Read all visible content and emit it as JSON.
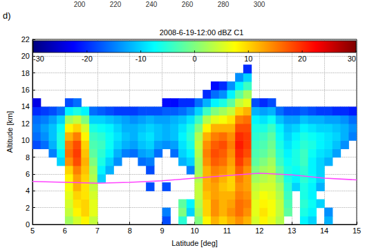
{
  "chart_data": {
    "type": "heatmap",
    "title": "2008-6-19-12:00 dBZ C1",
    "panel_label": "d)",
    "header_ticks": [
      "200",
      "220",
      "240",
      "260",
      "280",
      "300"
    ],
    "x_label": "Latitude [deg]",
    "y_label": "Altitude [km]",
    "xlim": [
      5,
      15
    ],
    "xticks": [
      5,
      6,
      7,
      8,
      9,
      10,
      11,
      12,
      13,
      14,
      15
    ],
    "ylim": [
      0,
      22
    ],
    "yticks": [
      0,
      2,
      4,
      6,
      8,
      10,
      12,
      14,
      16,
      18,
      20,
      22
    ],
    "grid": true,
    "x_edges": [
      5,
      5.25,
      5.5,
      5.75,
      6,
      6.25,
      6.5,
      6.75,
      7,
      7.25,
      7.5,
      7.75,
      8,
      8.25,
      8.5,
      8.75,
      9,
      9.25,
      9.5,
      9.75,
      10,
      10.25,
      10.5,
      10.75,
      11,
      11.25,
      11.5,
      11.75,
      12,
      12.25,
      12.5,
      12.75,
      13,
      13.25,
      13.5,
      13.75,
      14,
      14.25,
      14.5,
      14.75,
      15
    ],
    "y_edges": [
      0,
      1,
      2,
      3,
      4,
      5,
      6,
      7,
      8,
      9,
      10,
      11,
      12,
      13,
      14,
      15,
      16,
      17,
      18,
      19
    ],
    "cells": [
      [
        null,
        null,
        null,
        null,
        2,
        5,
        8,
        4,
        null,
        null,
        null,
        null,
        null,
        null,
        null,
        null,
        -18,
        null,
        -5,
        null,
        0,
        8,
        12,
        10,
        12,
        14,
        12,
        5,
        8,
        6,
        3,
        null,
        null,
        -8,
        -10,
        null,
        -12,
        null,
        null,
        null
      ],
      [
        null,
        null,
        null,
        null,
        4,
        8,
        10,
        6,
        null,
        null,
        null,
        null,
        null,
        null,
        null,
        null,
        -15,
        null,
        0,
        -10,
        2,
        10,
        14,
        12,
        14,
        16,
        14,
        6,
        9,
        7,
        4,
        -2,
        null,
        -6,
        -8,
        null,
        -14,
        null,
        null,
        null
      ],
      [
        null,
        null,
        null,
        null,
        5,
        9,
        10,
        6,
        null,
        null,
        null,
        null,
        null,
        null,
        null,
        null,
        null,
        null,
        -2,
        -8,
        3,
        10,
        14,
        12,
        13,
        16,
        15,
        6,
        8,
        7,
        4,
        -3,
        null,
        -5,
        -7,
        -10,
        null,
        null,
        null,
        null
      ],
      [
        null,
        null,
        null,
        null,
        6,
        10,
        9,
        5,
        null,
        null,
        null,
        null,
        null,
        null,
        null,
        null,
        null,
        null,
        null,
        null,
        4,
        11,
        13,
        12,
        12,
        15,
        14,
        5,
        7,
        6,
        3,
        -4,
        null,
        -6,
        -8,
        null,
        null,
        null,
        null,
        null
      ],
      [
        null,
        null,
        null,
        null,
        7,
        12,
        9,
        4,
        null,
        null,
        null,
        null,
        null,
        null,
        -18,
        null,
        -18,
        null,
        null,
        null,
        4,
        12,
        13,
        11,
        10,
        14,
        13,
        4,
        5,
        5,
        2,
        -5,
        -10,
        -6,
        -8,
        -12,
        null,
        null,
        null,
        null
      ],
      [
        null,
        null,
        null,
        null,
        8,
        13,
        10,
        3,
        -10,
        null,
        null,
        null,
        null,
        null,
        null,
        null,
        null,
        null,
        null,
        null,
        3,
        12,
        14,
        12,
        10,
        15,
        13,
        2,
        3,
        4,
        0,
        -6,
        -8,
        -5,
        -7,
        -10,
        null,
        null,
        null,
        null
      ],
      [
        null,
        null,
        null,
        null,
        10,
        15,
        11,
        2,
        -8,
        -12,
        null,
        null,
        null,
        null,
        -18,
        null,
        null,
        null,
        null,
        -15,
        2,
        12,
        15,
        14,
        12,
        17,
        14,
        0,
        2,
        3,
        -2,
        -6,
        -7,
        -5,
        -8,
        -10,
        null,
        null,
        null,
        null
      ],
      [
        null,
        null,
        null,
        -10,
        14,
        18,
        12,
        0,
        -6,
        -10,
        -14,
        null,
        null,
        -16,
        -15,
        null,
        null,
        null,
        -12,
        -10,
        2,
        14,
        17,
        16,
        13,
        19,
        16,
        -2,
        0,
        2,
        -4,
        -7,
        -6,
        -4,
        -8,
        -10,
        -12,
        null,
        null,
        null
      ],
      [
        null,
        null,
        -15,
        -8,
        16,
        19,
        11,
        -2,
        -5,
        -8,
        -12,
        -15,
        -16,
        -13,
        -12,
        -16,
        null,
        -16,
        -10,
        -8,
        3,
        15,
        18,
        17,
        14,
        20,
        18,
        -3,
        -2,
        0,
        -5,
        -8,
        -6,
        -4,
        -7,
        -9,
        -10,
        -13,
        null,
        null
      ],
      [
        -18,
        -16,
        -12,
        -6,
        15,
        18,
        10,
        -3,
        -4,
        -7,
        -10,
        -12,
        -13,
        -11,
        -10,
        -13,
        -14,
        -13,
        -9,
        -6,
        4,
        14,
        17,
        18,
        15,
        21,
        19,
        -4,
        -3,
        -1,
        -6,
        -9,
        -7,
        -5,
        -6,
        -8,
        -9,
        -11,
        -14,
        null
      ],
      [
        -16,
        -14,
        -11,
        -6,
        12,
        15,
        8,
        -4,
        -5,
        -7,
        -9,
        -11,
        -12,
        -10,
        -9,
        -11,
        -12,
        -11,
        -8,
        -5,
        3,
        12,
        15,
        16,
        14,
        20,
        19,
        -5,
        -4,
        -2,
        -7,
        -10,
        -8,
        -6,
        -7,
        -8,
        -9,
        -10,
        -12,
        -15
      ],
      [
        -15,
        -13,
        -11,
        -7,
        8,
        10,
        5,
        -6,
        -7,
        -8,
        -10,
        -12,
        -12,
        -11,
        -10,
        -11,
        -12,
        -11,
        -9,
        -6,
        0,
        8,
        12,
        12,
        12,
        18,
        18,
        -6,
        -6,
        -4,
        -8,
        -11,
        -10,
        -8,
        -9,
        -10,
        -10,
        -11,
        -12,
        -14
      ],
      [
        -16,
        -15,
        -13,
        -10,
        2,
        4,
        0,
        -10,
        -10,
        -11,
        -12,
        -13,
        -14,
        -13,
        -12,
        -13,
        -13,
        -12,
        -11,
        -9,
        -4,
        3,
        6,
        7,
        9,
        15,
        16,
        -8,
        -9,
        -7,
        -11,
        -13,
        -13,
        -11,
        -12,
        -12,
        -13,
        -13,
        -14,
        -16
      ],
      [
        -20,
        -19,
        -18,
        -16,
        -8,
        -6,
        -8,
        -16,
        -17,
        -18,
        -19,
        -19,
        -19,
        -18,
        -18,
        -18,
        -17,
        -17,
        -16,
        -14,
        -10,
        -4,
        0,
        2,
        4,
        10,
        12,
        -12,
        -13,
        -12,
        -16,
        -18,
        -18,
        -17,
        -18,
        -19,
        -19,
        -20,
        -20,
        -21
      ],
      [
        -24,
        null,
        null,
        null,
        -18,
        -16,
        null,
        null,
        null,
        null,
        null,
        null,
        null,
        null,
        null,
        null,
        -22,
        -22,
        -20,
        -20,
        -16,
        -12,
        -8,
        -6,
        -2,
        4,
        6,
        -18,
        -20,
        -18,
        null,
        null,
        null,
        null,
        null,
        null,
        null,
        null,
        null,
        null
      ],
      [
        null,
        null,
        null,
        null,
        null,
        null,
        null,
        null,
        null,
        null,
        null,
        null,
        null,
        null,
        null,
        null,
        null,
        null,
        null,
        null,
        null,
        -20,
        -16,
        -14,
        -8,
        -2,
        2,
        null,
        null,
        null,
        null,
        null,
        null,
        null,
        null,
        null,
        null,
        null,
        null,
        null
      ],
      [
        null,
        null,
        null,
        null,
        null,
        null,
        null,
        null,
        null,
        null,
        null,
        null,
        null,
        null,
        null,
        null,
        null,
        null,
        null,
        null,
        null,
        null,
        -22,
        -20,
        -14,
        -8,
        -4,
        null,
        null,
        null,
        null,
        null,
        null,
        null,
        null,
        null,
        null,
        null,
        null,
        null
      ],
      [
        null,
        null,
        null,
        null,
        null,
        null,
        null,
        null,
        null,
        null,
        null,
        null,
        null,
        null,
        null,
        null,
        null,
        null,
        null,
        null,
        null,
        null,
        null,
        null,
        null,
        -14,
        -10,
        null,
        null,
        null,
        null,
        null,
        null,
        null,
        null,
        null,
        null,
        null,
        null,
        null
      ],
      [
        null,
        null,
        null,
        null,
        null,
        null,
        null,
        null,
        null,
        null,
        null,
        null,
        null,
        null,
        null,
        null,
        null,
        null,
        null,
        null,
        null,
        null,
        null,
        null,
        null,
        null,
        -20,
        null,
        null,
        null,
        null,
        null,
        null,
        null,
        null,
        null,
        null,
        null,
        null,
        null
      ]
    ],
    "colorbar": {
      "range": [
        -30,
        30
      ],
      "ticks": [
        -30,
        -20,
        -10,
        0,
        10,
        20,
        30
      ],
      "colors": [
        "#00007f",
        "#0000ff",
        "#007fff",
        "#00ffff",
        "#7fff7f",
        "#ffff00",
        "#ff7f00",
        "#ff0000",
        "#7f0000"
      ]
    },
    "lines": [
      {
        "color": "#ff44ff",
        "x": [
          5,
          6,
          7,
          8,
          9,
          10,
          11,
          12,
          13,
          14,
          15
        ],
        "values": [
          5.1,
          5.0,
          4.9,
          5.0,
          5.2,
          5.5,
          5.8,
          6.1,
          5.9,
          5.5,
          5.3
        ]
      }
    ]
  }
}
